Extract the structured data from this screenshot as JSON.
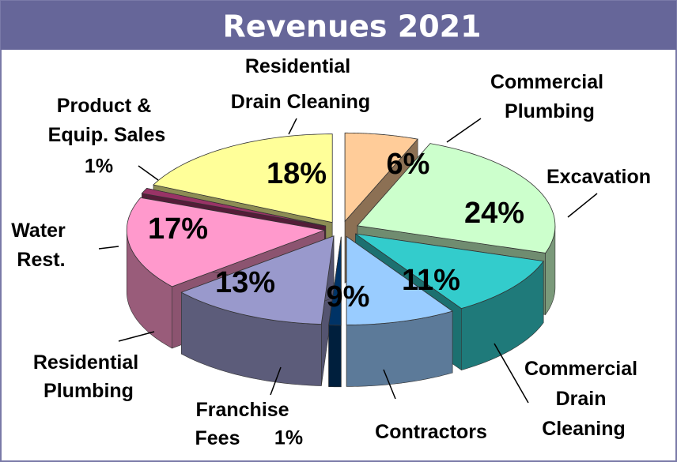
{
  "chart_data": {
    "type": "pie3d",
    "title": "Revenues 2021",
    "categories": [
      "Commercial Plumbing",
      "Excavation",
      "Commercial Drain Cleaning",
      "Contractors",
      "Franchise Fees",
      "Residential Plumbing",
      "Water Rest.",
      "Product & Equip. Sales",
      "Residential Drain Cleaning"
    ],
    "values": [
      6,
      24,
      11,
      9,
      1,
      13,
      17,
      1,
      18
    ],
    "value_labels": [
      "6%",
      "24%",
      "11%",
      "9%",
      "1%",
      "13%",
      "17%",
      "1%",
      "18%"
    ],
    "colors": [
      "#ffcc99",
      "#ccffcc",
      "#33cccc",
      "#99ccff",
      "#003366",
      "#9999cc",
      "#ff99cc",
      "#993366",
      "#ffff99"
    ]
  }
}
